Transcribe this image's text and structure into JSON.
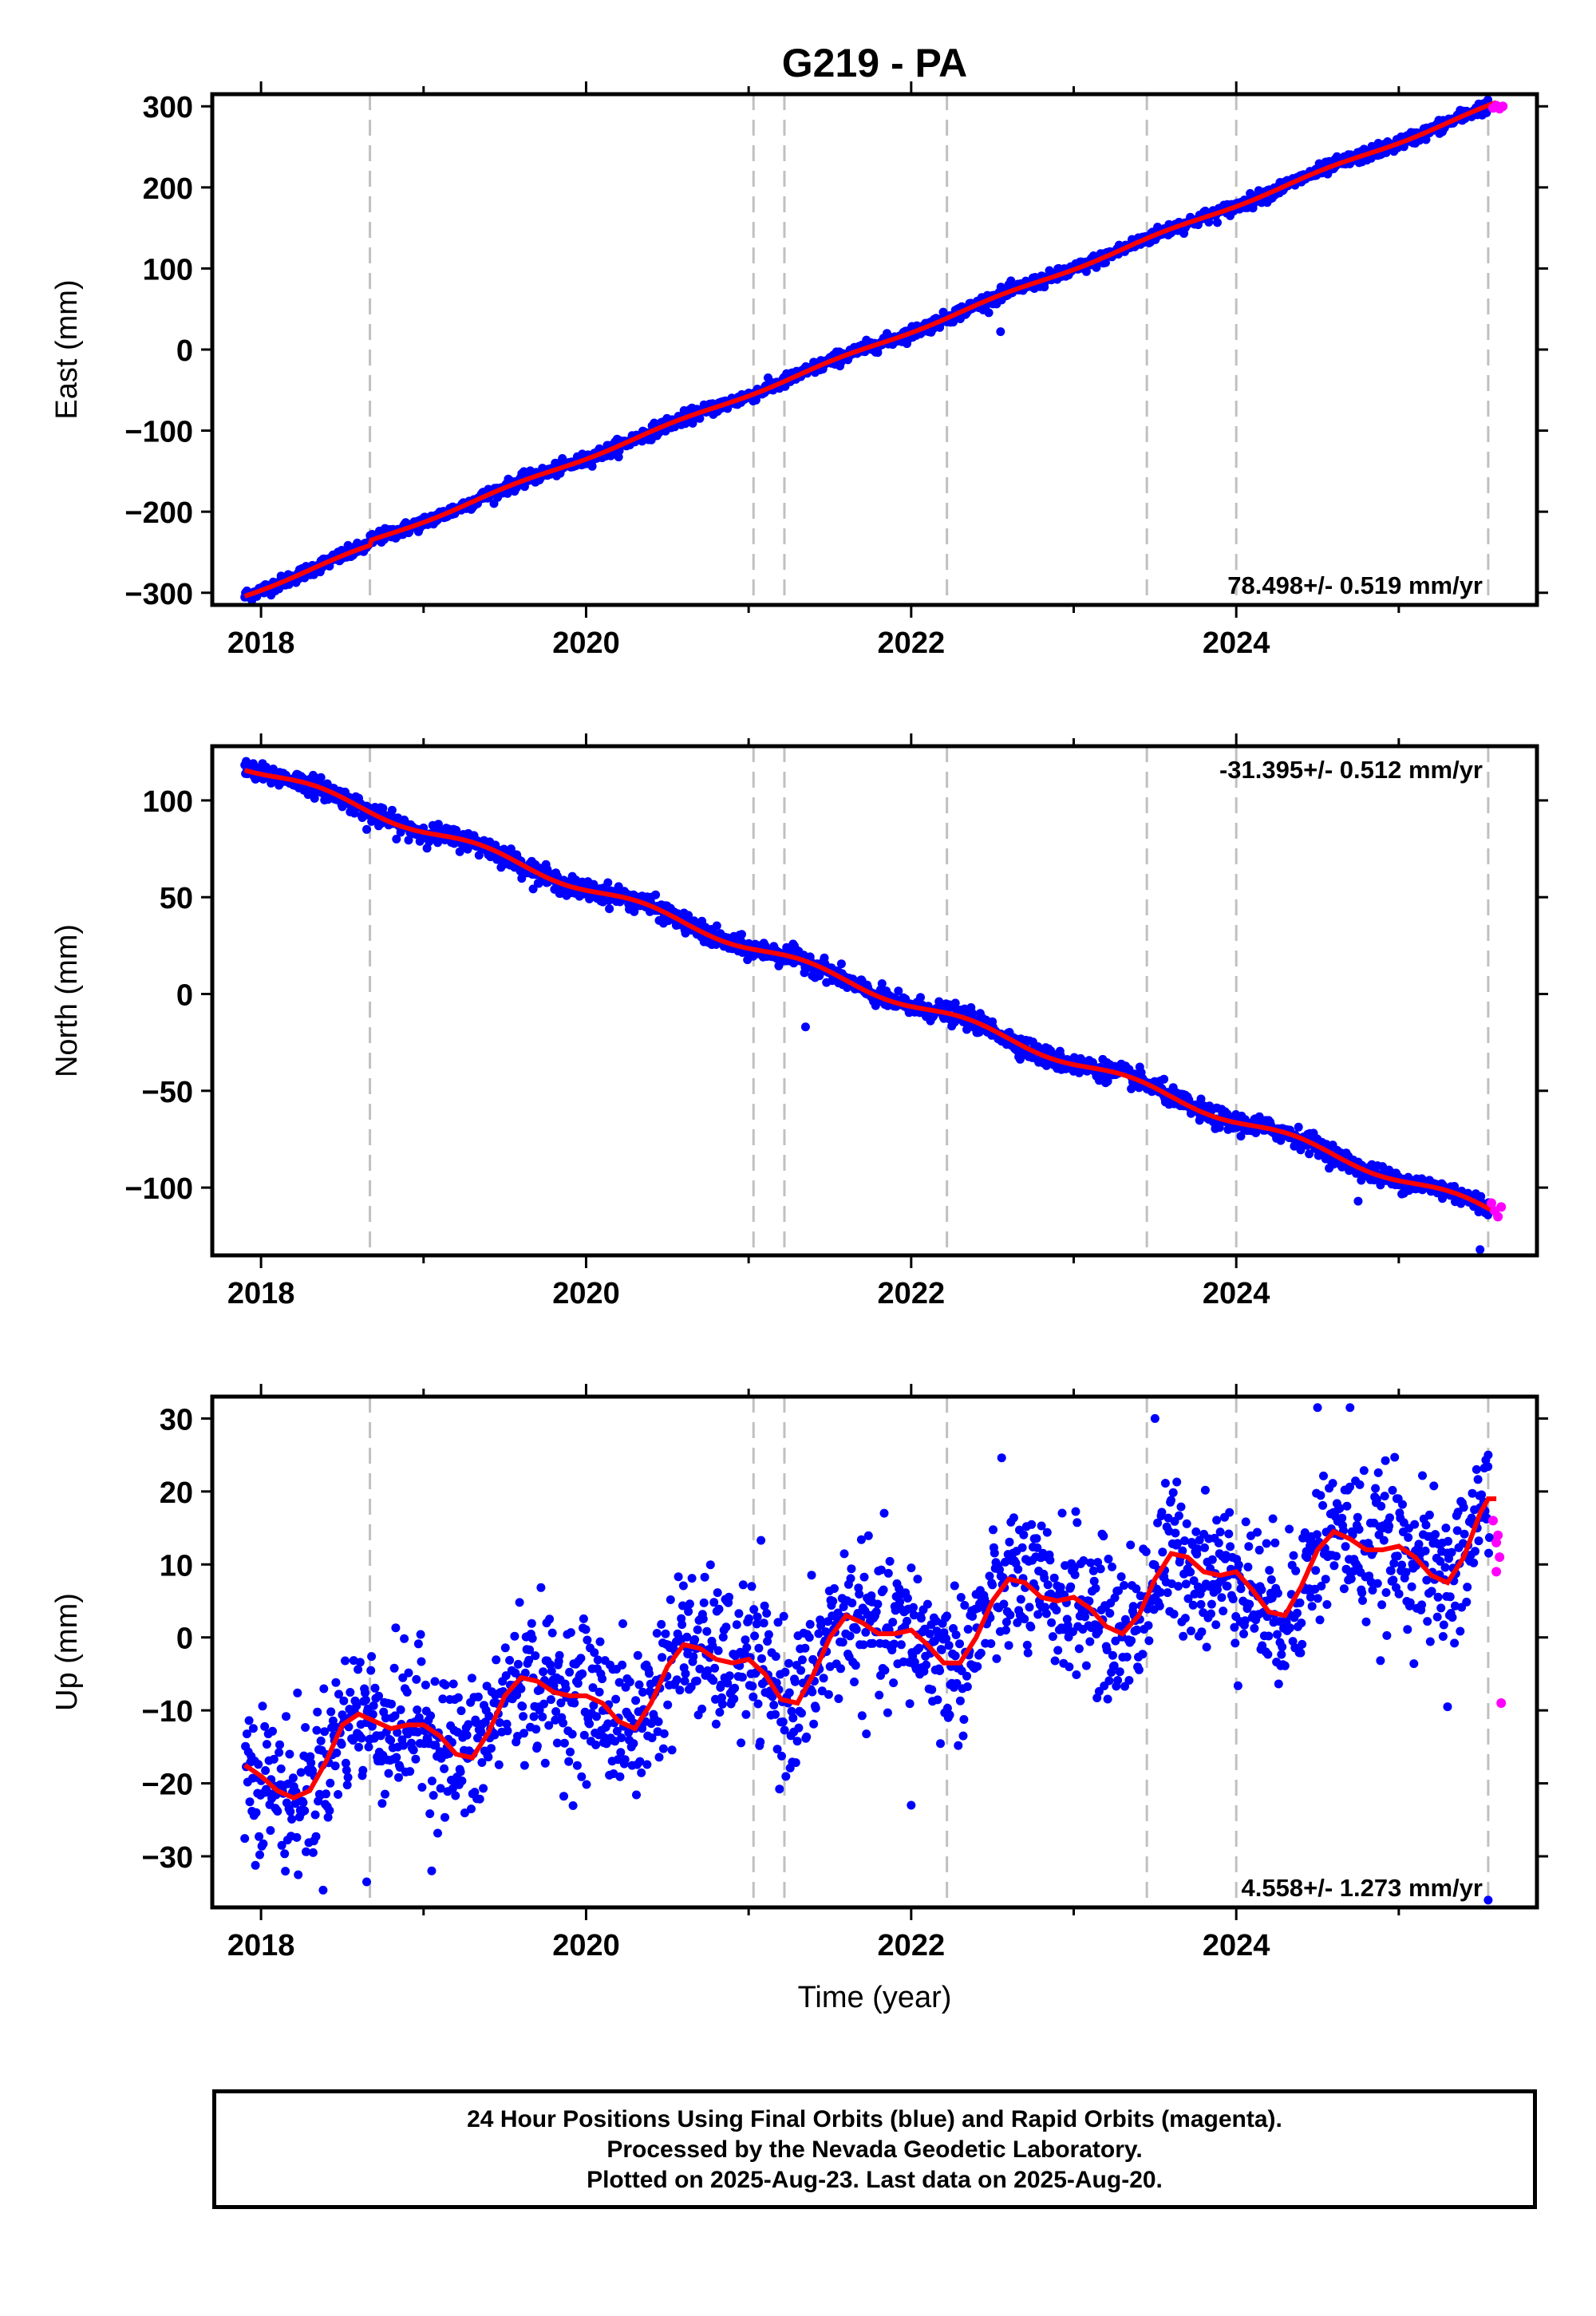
{
  "figure": {
    "title": "G219 - PA",
    "xlabel": "Time (year)"
  },
  "footer": {
    "line1": "24 Hour Positions Using Final Orbits (blue) and Rapid Orbits (magenta).",
    "line2": "Processed by the Nevada Geodetic Laboratory.",
    "line3": "Plotted on 2025-Aug-23. Last data on 2025-Aug-20."
  },
  "colors": {
    "final_orbits": "#0000ff",
    "rapid_orbits": "#ff00ff",
    "model_fit": "#ff0000",
    "event_lines": "#c0c0c0"
  },
  "chart_data": [
    {
      "type": "scatter",
      "panel": "east",
      "ylabel": "East (mm)",
      "rate_label": "78.498+/- 0.519 mm/yr",
      "rate_label_position": "bottom-right",
      "xlim": [
        2017.7,
        2025.85
      ],
      "ylim": [
        -315,
        315
      ],
      "yticks": [
        -300,
        -200,
        -100,
        0,
        100,
        200,
        300
      ],
      "xticks": [
        2018,
        2020,
        2022,
        2024
      ],
      "event_lines": [
        2018.67,
        2021.03,
        2021.22,
        2022.22,
        2023.45,
        2024.0,
        2025.55
      ],
      "start_value": -303,
      "end_value": 297,
      "rate_mm_yr": 78.498,
      "scatter_mm": 4,
      "seasonal": [
        {
          "amplitude": 2,
          "phase": 0.3
        }
      ],
      "offsets": [
        {
          "x": 2018.67,
          "dy": 6
        }
      ],
      "outliers": [
        [
          2018.2,
          -285
        ],
        [
          2021.9,
          14
        ],
        [
          2022.55,
          22
        ]
      ],
      "rapid_points": [
        [
          2025.58,
          298
        ],
        [
          2025.6,
          301
        ],
        [
          2025.62,
          297
        ],
        [
          2025.64,
          300
        ]
      ],
      "fit_end": 2025.6
    },
    {
      "type": "scatter",
      "panel": "north",
      "ylabel": "North (mm)",
      "rate_label": "-31.395+/- 0.512 mm/yr",
      "rate_label_position": "top-right",
      "xlim": [
        2017.7,
        2025.85
      ],
      "ylim": [
        -135,
        128
      ],
      "yticks": [
        -100,
        -50,
        0,
        50,
        100
      ],
      "xticks": [
        2018,
        2020,
        2022,
        2024
      ],
      "event_lines": [
        2018.67,
        2021.03,
        2021.22,
        2022.22,
        2023.45,
        2024.0,
        2025.55
      ],
      "start_value": 118,
      "end_value": -113,
      "rate_mm_yr": -31.395,
      "scatter_mm": 2.5,
      "seasonal": [
        {
          "amplitude": 2.5,
          "phase": 0.1
        }
      ],
      "offsets": [],
      "outliers": [
        [
          2018.65,
          85
        ],
        [
          2021.35,
          -17
        ],
        [
          2024.75,
          -107
        ],
        [
          2025.5,
          -132
        ]
      ],
      "rapid_points": [
        [
          2025.57,
          -108
        ],
        [
          2025.59,
          -112
        ],
        [
          2025.61,
          -115
        ],
        [
          2025.63,
          -110
        ]
      ],
      "fit_end": 2025.6
    },
    {
      "type": "scatter",
      "panel": "up",
      "ylabel": "Up (mm)",
      "rate_label": "4.558+/- 1.273 mm/yr",
      "rate_label_position": "bottom-right",
      "xlim": [
        2017.7,
        2025.85
      ],
      "ylim": [
        -37,
        33
      ],
      "yticks": [
        -30,
        -20,
        -10,
        0,
        10,
        20,
        30
      ],
      "xticks": [
        2018,
        2020,
        2022,
        2024
      ],
      "event_lines": [
        2018.67,
        2021.03,
        2021.22,
        2022.22,
        2023.45,
        2024.0,
        2025.55
      ],
      "start_value": -18,
      "end_value": 17,
      "rate_mm_yr": 4.558,
      "scatter_mm": 5,
      "seasonal": [
        {
          "amplitude": 4.5,
          "phase": 0.2
        }
      ],
      "offsets": [],
      "outliers": [
        [
          2018.65,
          -33.5
        ],
        [
          2019.05,
          -32
        ],
        [
          2023.5,
          30
        ],
        [
          2024.5,
          31.5
        ],
        [
          2024.7,
          31.5
        ],
        [
          2025.55,
          -36
        ],
        [
          2025.55,
          25
        ],
        [
          2025.3,
          -9.5
        ],
        [
          2022.0,
          -23
        ]
      ],
      "rapid_points": [
        [
          2025.58,
          16
        ],
        [
          2025.6,
          13
        ],
        [
          2025.62,
          11
        ],
        [
          2025.6,
          9
        ],
        [
          2025.63,
          -9
        ],
        [
          2025.61,
          14
        ]
      ],
      "fit_end": 2025.6,
      "fit_curve": [
        [
          2017.9,
          -17.5
        ],
        [
          2018.0,
          -19
        ],
        [
          2018.1,
          -21
        ],
        [
          2018.2,
          -22
        ],
        [
          2018.3,
          -21
        ],
        [
          2018.4,
          -17
        ],
        [
          2018.5,
          -12
        ],
        [
          2018.6,
          -10.5
        ],
        [
          2018.7,
          -11.5
        ],
        [
          2018.8,
          -12.5
        ],
        [
          2018.9,
          -12
        ],
        [
          2019.0,
          -12
        ],
        [
          2019.1,
          -13.5
        ],
        [
          2019.2,
          -16
        ],
        [
          2019.3,
          -16.5
        ],
        [
          2019.4,
          -13
        ],
        [
          2019.5,
          -8
        ],
        [
          2019.6,
          -5.5
        ],
        [
          2019.7,
          -6
        ],
        [
          2019.8,
          -7.5
        ],
        [
          2019.9,
          -8
        ],
        [
          2020.0,
          -8
        ],
        [
          2020.1,
          -9
        ],
        [
          2020.2,
          -11.5
        ],
        [
          2020.3,
          -12.5
        ],
        [
          2020.4,
          -9
        ],
        [
          2020.5,
          -4
        ],
        [
          2020.6,
          -1
        ],
        [
          2020.7,
          -1.5
        ],
        [
          2020.8,
          -3
        ],
        [
          2020.9,
          -3.5
        ],
        [
          2021.0,
          -3
        ],
        [
          2021.1,
          -5
        ],
        [
          2021.2,
          -8.5
        ],
        [
          2021.3,
          -9
        ],
        [
          2021.4,
          -5
        ],
        [
          2021.5,
          0
        ],
        [
          2021.6,
          3
        ],
        [
          2021.7,
          2
        ],
        [
          2021.8,
          0.5
        ],
        [
          2021.9,
          0.5
        ],
        [
          2022.0,
          1
        ],
        [
          2022.1,
          -1
        ],
        [
          2022.2,
          -3.5
        ],
        [
          2022.3,
          -3.5
        ],
        [
          2022.4,
          0
        ],
        [
          2022.5,
          5
        ],
        [
          2022.6,
          8
        ],
        [
          2022.7,
          7.5
        ],
        [
          2022.8,
          5.5
        ],
        [
          2022.9,
          5
        ],
        [
          2023.0,
          5.5
        ],
        [
          2023.1,
          4
        ],
        [
          2023.2,
          1.5
        ],
        [
          2023.3,
          0.5
        ],
        [
          2023.4,
          3
        ],
        [
          2023.5,
          8
        ],
        [
          2023.6,
          11.5
        ],
        [
          2023.7,
          11
        ],
        [
          2023.8,
          9
        ],
        [
          2023.9,
          8.5
        ],
        [
          2024.0,
          9
        ],
        [
          2024.1,
          6.5
        ],
        [
          2024.2,
          3.5
        ],
        [
          2024.3,
          3
        ],
        [
          2024.4,
          7
        ],
        [
          2024.5,
          12
        ],
        [
          2024.6,
          14.5
        ],
        [
          2024.7,
          13.5
        ],
        [
          2024.8,
          12
        ],
        [
          2024.9,
          12
        ],
        [
          2025.0,
          12.5
        ],
        [
          2025.1,
          11
        ],
        [
          2025.2,
          8.5
        ],
        [
          2025.3,
          7.5
        ],
        [
          2025.4,
          11
        ],
        [
          2025.5,
          17
        ],
        [
          2025.55,
          19
        ],
        [
          2025.6,
          19
        ]
      ]
    }
  ]
}
